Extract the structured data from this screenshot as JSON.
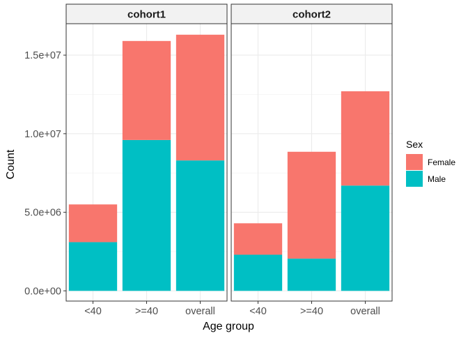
{
  "chart_data": {
    "type": "bar",
    "stacked": true,
    "xlabel": "Age group",
    "ylabel": "Count",
    "ylim": [
      -650000,
      17000000
    ],
    "yticks": [
      0,
      5000000,
      10000000,
      15000000
    ],
    "ytick_labels": [
      "0.0e+00",
      "5.0e+06",
      "1.0e+07",
      "1.5e+07"
    ],
    "categories": [
      "<40",
      ">=40",
      "overall"
    ],
    "grid": true,
    "legend": {
      "title": "Sex",
      "placement": "right",
      "entries": [
        {
          "name": "Female",
          "color": "#F8766D"
        },
        {
          "name": "Male",
          "color": "#00BFC4"
        }
      ]
    },
    "panels": [
      {
        "label": "cohort1",
        "series": [
          {
            "name": "Male",
            "color": "#00BFC4",
            "values": [
              3100000,
              9600000,
              8300000
            ]
          },
          {
            "name": "Female",
            "color": "#F8766D",
            "values": [
              2400000,
              6300000,
              8000000
            ]
          }
        ]
      },
      {
        "label": "cohort2",
        "series": [
          {
            "name": "Male",
            "color": "#00BFC4",
            "values": [
              2300000,
              2050000,
              6700000
            ]
          },
          {
            "name": "Female",
            "color": "#F8766D",
            "values": [
              2000000,
              6800000,
              6000000
            ]
          }
        ]
      }
    ]
  }
}
